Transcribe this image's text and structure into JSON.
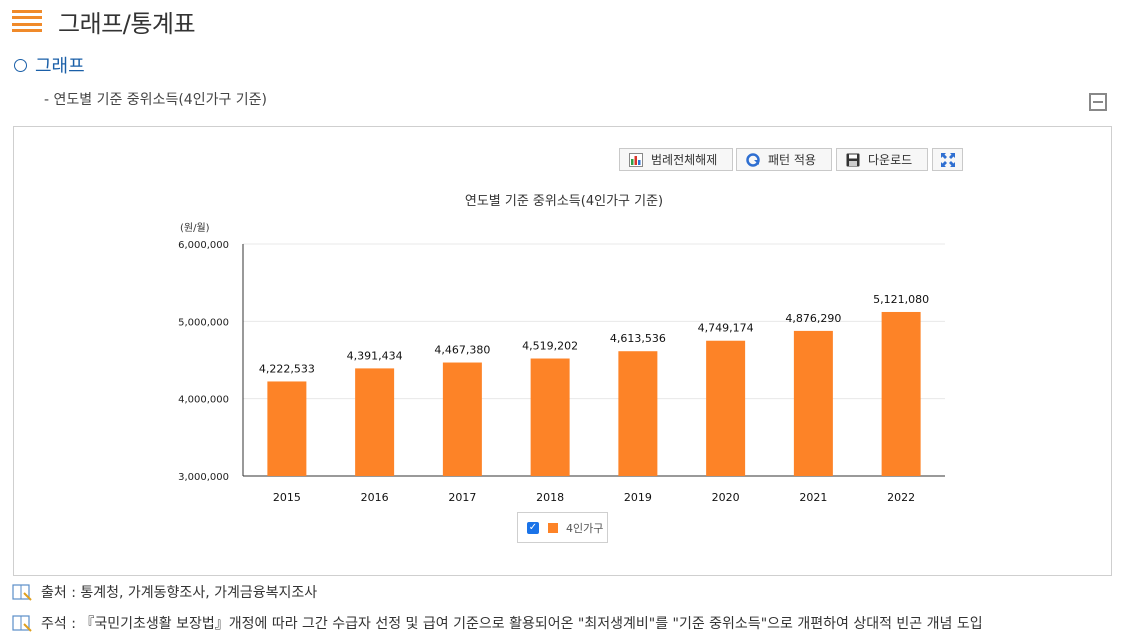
{
  "page": {
    "title": "그래프/통계표"
  },
  "section": {
    "title": "그래프",
    "subtitle": "- 연도별 기준 중위소득(4인가구 기준)"
  },
  "toolbar": {
    "legend_toggle_label": "범례전체해제",
    "pattern_label": "패턴 적용",
    "download_label": "다운로드"
  },
  "chart_data": {
    "type": "bar",
    "title": "연도별 기준 중위소득(4인가구 기준)",
    "unit_label": "(원/월)",
    "categories": [
      "2015",
      "2016",
      "2017",
      "2018",
      "2019",
      "2020",
      "2021",
      "2022"
    ],
    "series": [
      {
        "name": "4인가구",
        "color": "#fd8327",
        "values": [
          4222533,
          4391434,
          4467380,
          4519202,
          4613536,
          4749174,
          4876290,
          5121080
        ],
        "value_labels": [
          "4,222,533",
          "4,391,434",
          "4,467,380",
          "4,519,202",
          "4,613,536",
          "4,749,174",
          "4,876,290",
          "5,121,080"
        ]
      }
    ],
    "ylim": [
      3000000,
      6000000
    ],
    "yticks": [
      3000000,
      4000000,
      5000000,
      6000000
    ],
    "ytick_labels": [
      "3,000,000",
      "4,000,000",
      "5,000,000",
      "6,000,000"
    ],
    "legend_checked": true,
    "legend_position": "bottom-center",
    "grid": true
  },
  "footer": {
    "source": "출처 : 통계청, 가계동향조사, 가계금융복지조사",
    "remark": "주석 : 『국민기초생활 보장법』개정에 따라 그간 수급자 선정 및 급여 기준으로 활용되어온 \"최저생계비\"를 \"기준 중위소득\"으로 개편하여 상대적 빈곤 개념 도입"
  }
}
